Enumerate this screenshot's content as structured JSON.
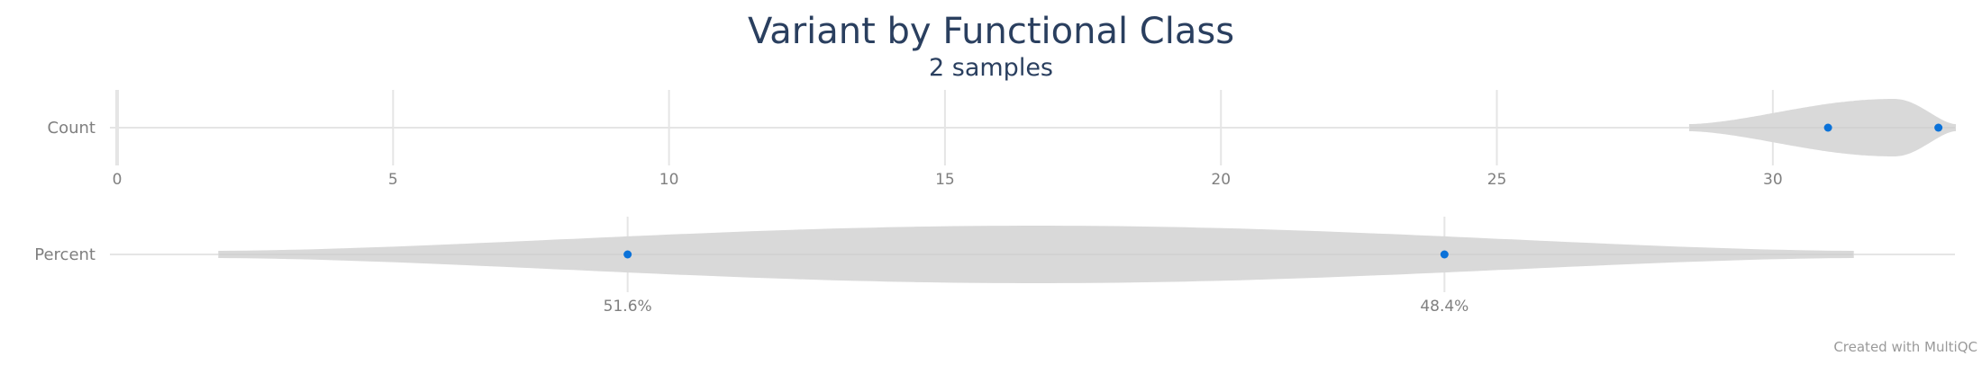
{
  "chart_data": {
    "type": "violin",
    "title": "Variant by Functional Class",
    "subtitle": "2 samples",
    "credit": "Created with MultiQC",
    "colors": {
      "violin_fill": "#d9d9d9",
      "point": "#0b72d9",
      "grid": "#e5e5e5",
      "text": "#2a3f5f"
    },
    "panels": [
      {
        "label": "Count",
        "x_ticks": [
          "0",
          "5",
          "10",
          "15",
          "20",
          "25",
          "30"
        ],
        "tick_values": [
          0,
          5,
          10,
          15,
          20,
          25,
          30
        ],
        "xlim": [
          0,
          33.3
        ],
        "points": [
          31,
          33
        ],
        "violin_range": [
          28.5,
          33.3
        ],
        "violin_half_width": 0.27,
        "violin_peak": 32.2
      },
      {
        "label": "Percent",
        "x_ticks": [
          "51.6%",
          "48.4%"
        ],
        "tick_values": [
          51.6,
          48.4
        ],
        "xlim": [
          53.6,
          46.4
        ],
        "points": [
          51.6,
          48.4
        ],
        "violin_range": [
          53.2,
          46.8
        ],
        "violin_half_width": 0.27,
        "violin_peak": 50.0
      }
    ]
  }
}
